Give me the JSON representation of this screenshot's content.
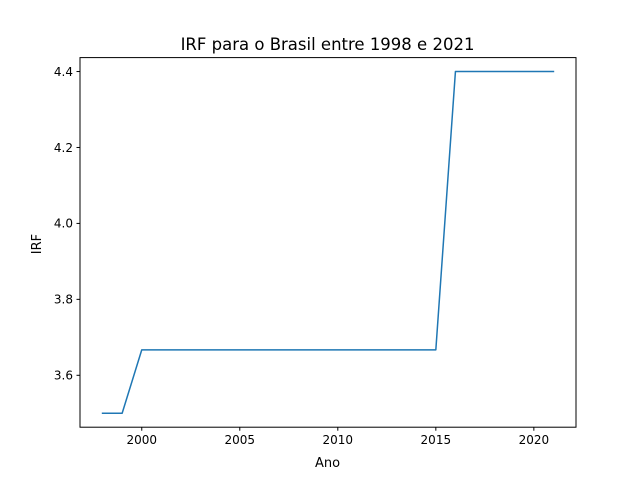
{
  "chart_data": {
    "type": "line",
    "title": "IRF para o Brasil entre 1998 e 2021",
    "xlabel": "Ano",
    "ylabel": "IRF",
    "xlim": [
      1996.85,
      2022.15
    ],
    "ylim": [
      3.4633,
      4.4367
    ],
    "x_ticks": [
      2000,
      2005,
      2010,
      2015,
      2020
    ],
    "y_ticks": [
      3.6,
      3.8,
      4.0,
      4.2,
      4.4
    ],
    "x_tick_labels": [
      "2000",
      "2005",
      "2010",
      "2015",
      "2020"
    ],
    "y_tick_labels": [
      "3.6",
      "3.8",
      "4.0",
      "4.2",
      "4.4"
    ],
    "grid": false,
    "series": [
      {
        "color": "#1f77b4",
        "x": [
          1998,
          1999,
          2000,
          2001,
          2002,
          2003,
          2004,
          2005,
          2006,
          2007,
          2008,
          2009,
          2010,
          2011,
          2012,
          2013,
          2014,
          2015,
          2016,
          2017,
          2018,
          2019,
          2020,
          2021
        ],
        "y": [
          3.5,
          3.5,
          3.667,
          3.667,
          3.667,
          3.667,
          3.667,
          3.667,
          3.667,
          3.667,
          3.667,
          3.667,
          3.667,
          3.667,
          3.667,
          3.667,
          3.667,
          3.667,
          4.4,
          4.4,
          4.4,
          4.4,
          4.4,
          4.4
        ]
      }
    ]
  }
}
